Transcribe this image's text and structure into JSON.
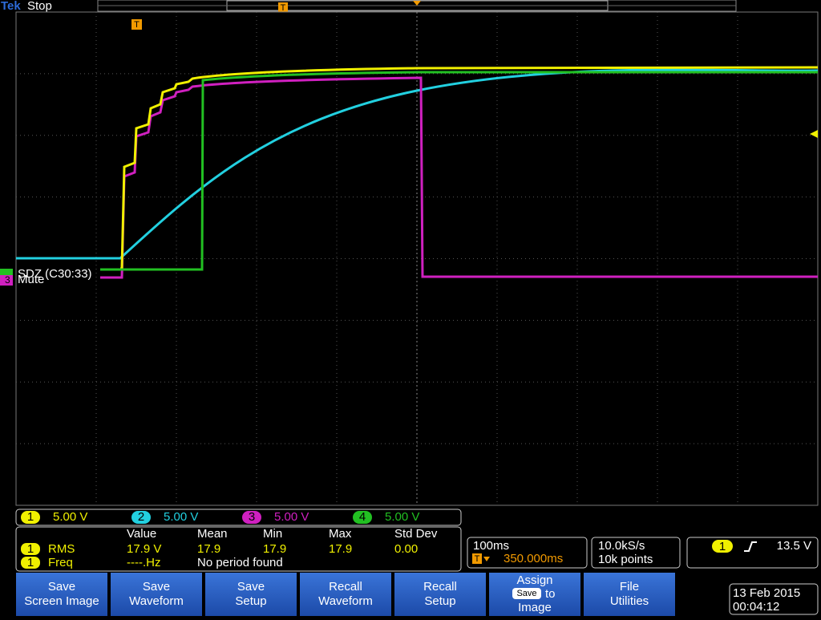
{
  "header": {
    "brand": "Tek",
    "status": "Stop"
  },
  "trigger_marker": "T",
  "labels": {
    "bus": "SDZ (C30:33)",
    "mute": "Mute"
  },
  "left_marker": "3",
  "channels": [
    {
      "number": "1",
      "scale": "5.00 V"
    },
    {
      "number": "2",
      "scale": "5.00 V"
    },
    {
      "number": "3",
      "scale": "5.00 V"
    },
    {
      "number": "4",
      "scale": "5.00 V"
    }
  ],
  "measurements": {
    "headers": [
      "Value",
      "Mean",
      "Min",
      "Max",
      "Std Dev"
    ],
    "rows": [
      {
        "source": "1",
        "name": "RMS",
        "cells": [
          "17.9 V",
          "17.9",
          "17.9",
          "17.9",
          "0.00"
        ]
      },
      {
        "source": "1",
        "name": "Freq",
        "cells": [
          "----.Hz",
          "No period found"
        ]
      }
    ]
  },
  "timebase": {
    "scale": "100ms",
    "position": "350.000ms"
  },
  "acquisition": {
    "rate": "10.0kS/s",
    "length": "10k points"
  },
  "trigger": {
    "source": "1",
    "level": "13.5 V"
  },
  "buttons": [
    [
      "Save",
      "Screen Image"
    ],
    [
      "Save",
      "Waveform"
    ],
    [
      "Save",
      "Setup"
    ],
    [
      "Recall",
      "Waveform"
    ],
    [
      "Recall",
      "Setup"
    ]
  ],
  "assign": {
    "line1": "Assign",
    "badge": "Save",
    "word": "to",
    "line3": "Image"
  },
  "file_button": [
    "File",
    "Utilities"
  ],
  "datetime": {
    "date": "13 Feb 2015",
    "time": "00:04:12"
  }
}
